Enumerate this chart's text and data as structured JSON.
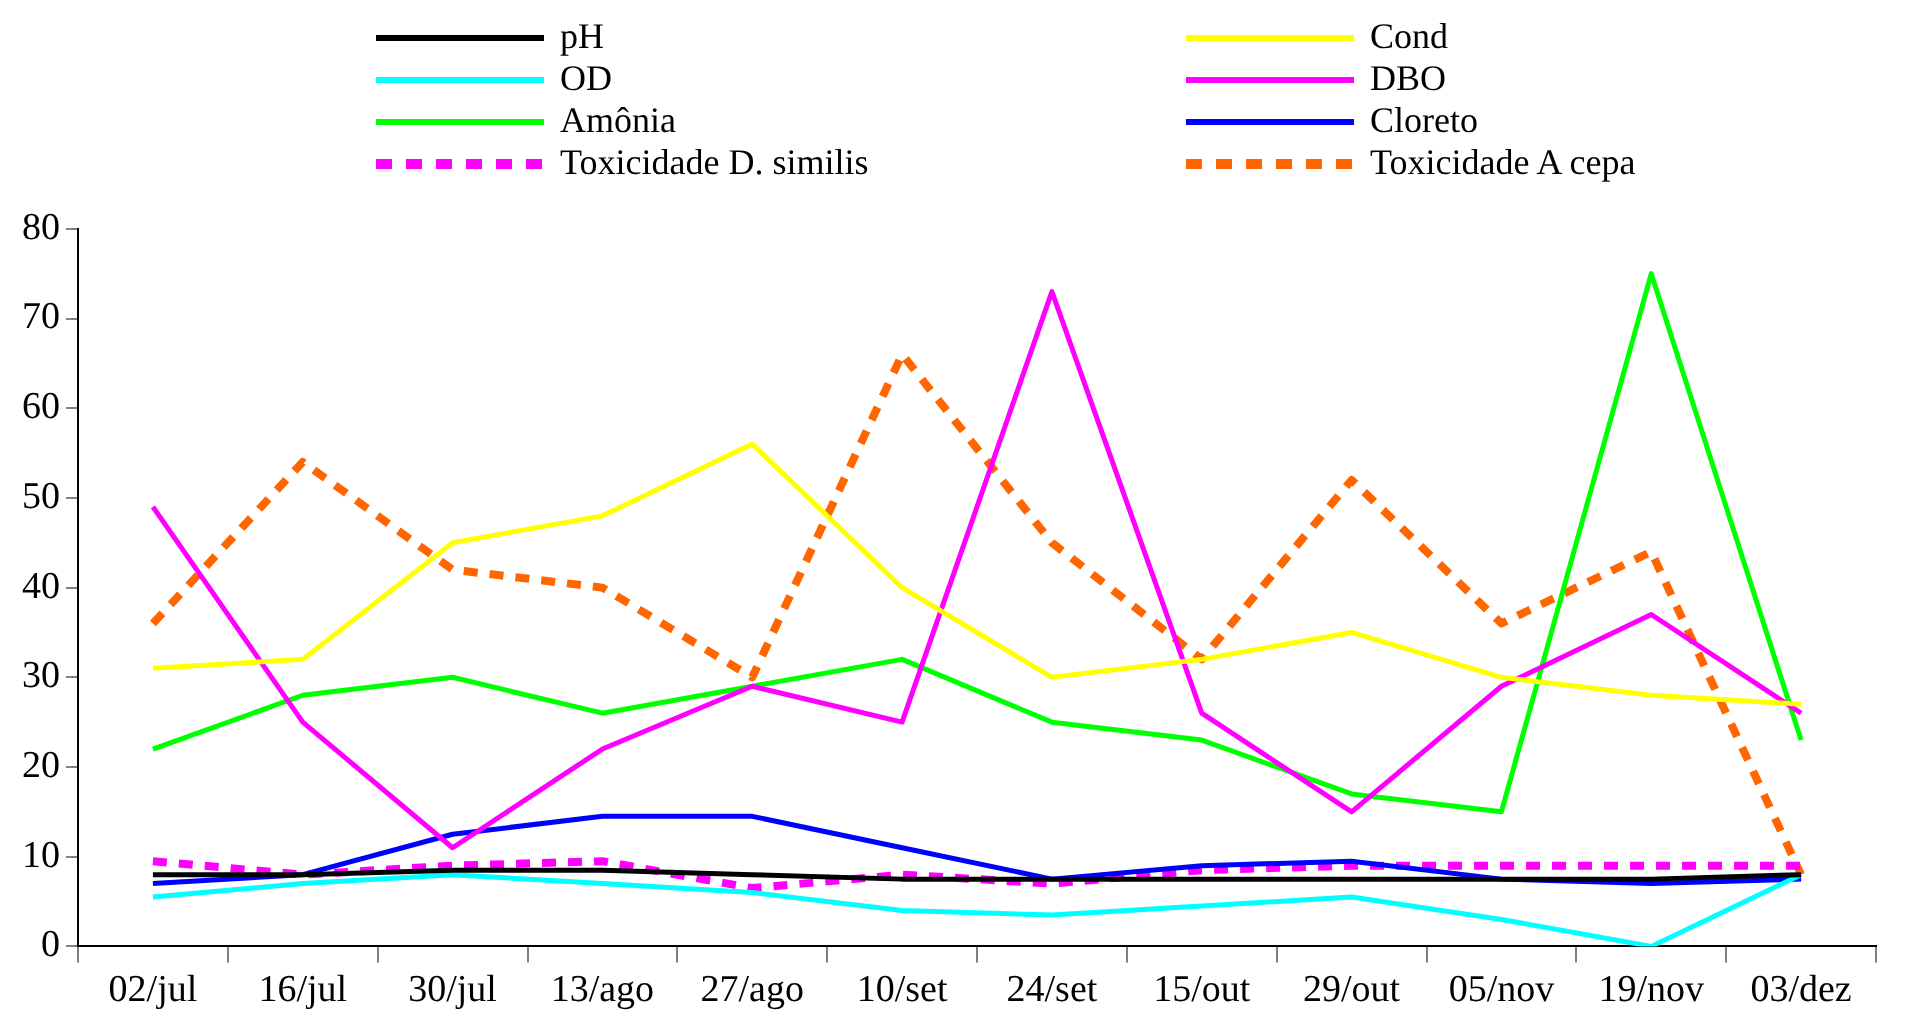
{
  "chart_data": {
    "type": "line",
    "categories": [
      "02/jul",
      "16/jul",
      "30/jul",
      "13/ago",
      "27/ago",
      "10/set",
      "24/set",
      "15/out",
      "29/out",
      "05/nov",
      "19/nov",
      "03/dez"
    ],
    "series": [
      {
        "name": "pH",
        "color": "#000000",
        "values": [
          8,
          8,
          8.5,
          8.5,
          8,
          7.5,
          7.5,
          7.5,
          7.5,
          7.5,
          7.5,
          8
        ]
      },
      {
        "name": "Cond",
        "color": "#ffff00",
        "values": [
          31,
          32,
          45,
          48,
          56,
          40,
          30,
          32,
          35,
          30,
          28,
          27
        ]
      },
      {
        "name": "OD",
        "color": "#00ffff",
        "values": [
          5.5,
          7,
          8,
          7,
          6,
          4,
          3.5,
          4.5,
          5.5,
          3,
          0,
          8
        ]
      },
      {
        "name": "DBO",
        "color": "#ff00ff",
        "values": [
          49,
          25,
          11,
          22,
          29,
          25,
          73,
          26,
          15,
          29,
          37,
          26
        ]
      },
      {
        "name": "Amônia",
        "color": "#00ff00",
        "values": [
          22,
          28,
          30,
          26,
          29,
          32,
          25,
          23,
          17,
          15,
          75,
          23
        ]
      },
      {
        "name": "Cloreto",
        "color": "#0000ff",
        "values": [
          7,
          8,
          12.5,
          14.5,
          14.5,
          11,
          7.5,
          9,
          9.5,
          7.5,
          7,
          7.5
        ]
      },
      {
        "name": "Toxicidade D. similis",
        "color": "#ff00ff",
        "line_style": "dashed",
        "values": [
          9.5,
          8,
          9,
          9.5,
          6.5,
          8,
          7,
          8.5,
          9,
          9,
          9,
          9
        ]
      },
      {
        "name": "Toxicidade A cepa",
        "color": "#ff6600",
        "line_style": "dashed",
        "values": [
          36,
          54,
          42,
          40,
          30,
          66,
          45,
          32,
          52,
          36,
          44,
          8
        ]
      }
    ],
    "ylim": [
      0,
      80
    ],
    "yticks": [
      0,
      10,
      20,
      30,
      40,
      50,
      60,
      70,
      80
    ],
    "grid": false,
    "legend": "top",
    "marker": "none",
    "line_style": "solid"
  }
}
